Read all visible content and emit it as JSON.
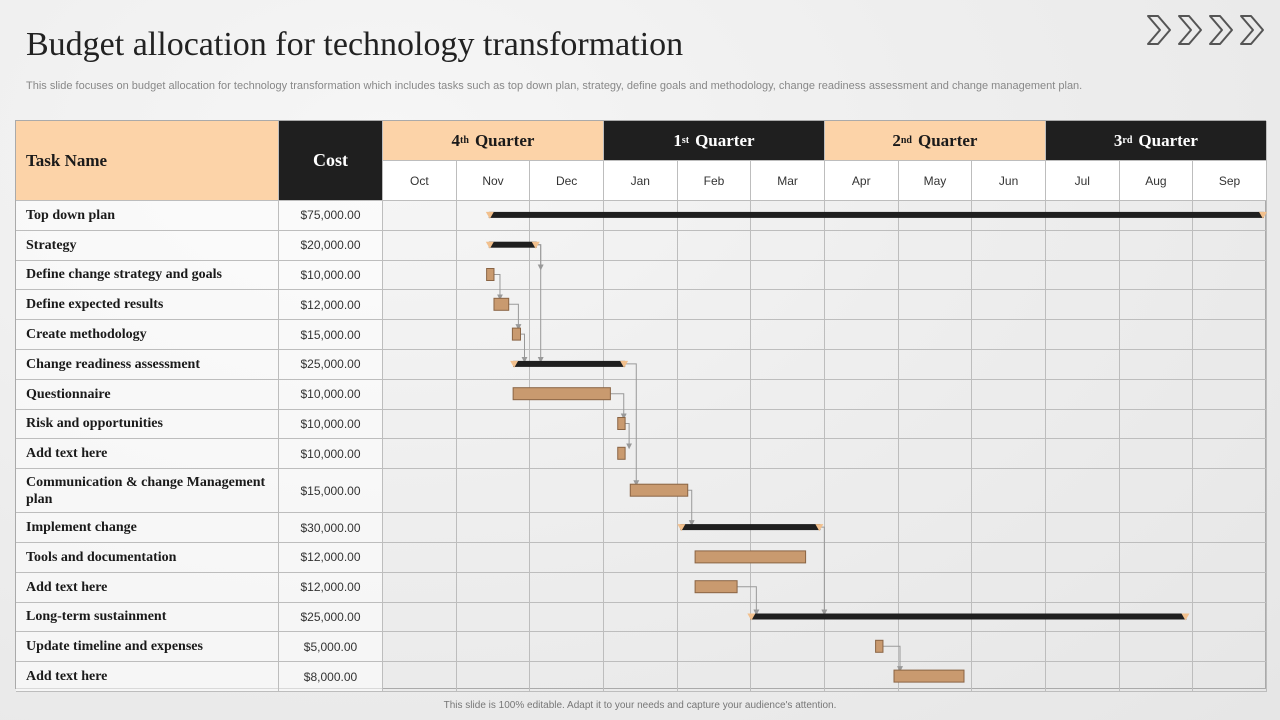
{
  "title": "Budget allocation for technology transformation",
  "subtitle": "This slide focuses on budget allocation for technology transformation which includes tasks such as top down plan, strategy, define goals and methodology, change readiness assessment and change management plan.",
  "footer": "This slide is 100% editable. Adapt it to your needs and capture your audience's attention.",
  "table": {
    "task_header": "Task Name",
    "cost_header": "Cost",
    "quarters": [
      {
        "num": "4",
        "sup": "th",
        "word": "Quarter",
        "style": "light"
      },
      {
        "num": "1",
        "sup": "st",
        "word": "Quarter",
        "style": "dark"
      },
      {
        "num": "2",
        "sup": "nd",
        "word": "Quarter",
        "style": "light"
      },
      {
        "num": "3",
        "sup": "rd",
        "word": "Quarter",
        "style": "dark"
      }
    ],
    "months": [
      "Oct",
      "Nov",
      "Dec",
      "Jan",
      "Feb",
      "Mar",
      "Apr",
      "May",
      "Jun",
      "Jul",
      "Aug",
      "Sep"
    ],
    "rows": [
      {
        "task": "Top down plan",
        "cost": "$75,000.00"
      },
      {
        "task": "Strategy",
        "cost": "$20,000.00"
      },
      {
        "task": "Define change strategy and goals",
        "cost": "$10,000.00"
      },
      {
        "task": "Define expected results",
        "cost": "$12,000.00"
      },
      {
        "task": "Create methodology",
        "cost": "$15,000.00"
      },
      {
        "task": "Change readiness assessment",
        "cost": "$25,000.00"
      },
      {
        "task": "Questionnaire",
        "cost": "$10,000.00"
      },
      {
        "task": "Risk and opportunities",
        "cost": "$10,000.00"
      },
      {
        "task": "Add text here",
        "cost": "$10,000.00"
      },
      {
        "task": "Communication & change Management plan",
        "cost": "$15,000.00"
      },
      {
        "task": "Implement change",
        "cost": "$30,000.00"
      },
      {
        "task": "Tools and documentation",
        "cost": "$12,000.00"
      },
      {
        "task": "Add text here",
        "cost": "$12,000.00"
      },
      {
        "task": "Long-term sustainment",
        "cost": "$25,000.00"
      },
      {
        "task": "Update timeline and expenses",
        "cost": "$5,000.00"
      },
      {
        "task": "Add text here",
        "cost": "$8,000.00"
      }
    ]
  },
  "gantt": {
    "colors": {
      "summary": "#1f1f1f",
      "task": "#c99a6f",
      "task_border": "#8a6444",
      "tip": "#f2c08d",
      "connector": "#999999"
    },
    "bars": [
      {
        "row": 0,
        "kind": "summary",
        "start": 1.45,
        "end": 12.0
      },
      {
        "row": 1,
        "kind": "summary",
        "start": 1.45,
        "end": 2.1
      },
      {
        "row": 2,
        "kind": "task",
        "start": 1.42,
        "end": 1.52
      },
      {
        "row": 3,
        "kind": "task",
        "start": 1.52,
        "end": 1.72
      },
      {
        "row": 4,
        "kind": "task",
        "start": 1.77,
        "end": 1.88
      },
      {
        "row": 5,
        "kind": "summary",
        "start": 1.78,
        "end": 3.3
      },
      {
        "row": 6,
        "kind": "task",
        "start": 1.78,
        "end": 3.1
      },
      {
        "row": 7,
        "kind": "task",
        "start": 3.2,
        "end": 3.3
      },
      {
        "row": 8,
        "kind": "task",
        "start": 3.2,
        "end": 3.3
      },
      {
        "row": 9,
        "kind": "task",
        "start": 3.37,
        "end": 4.15
      },
      {
        "row": 10,
        "kind": "summary",
        "start": 4.05,
        "end": 5.95
      },
      {
        "row": 11,
        "kind": "task",
        "start": 4.25,
        "end": 5.75
      },
      {
        "row": 12,
        "kind": "task",
        "start": 4.25,
        "end": 4.82
      },
      {
        "row": 13,
        "kind": "summary",
        "start": 5.0,
        "end": 10.92
      },
      {
        "row": 14,
        "kind": "task",
        "start": 6.7,
        "end": 6.8
      },
      {
        "row": 15,
        "kind": "task",
        "start": 6.95,
        "end": 7.9
      }
    ],
    "links": [
      {
        "from": 1,
        "to": 2
      },
      {
        "from": 2,
        "to": 3
      },
      {
        "from": 3,
        "to": 4
      },
      {
        "from": 4,
        "to": 5
      },
      {
        "from": 1,
        "to": 5
      },
      {
        "from": 6,
        "to": 7
      },
      {
        "from": 7,
        "to": 8
      },
      {
        "from": 5,
        "to": 9
      },
      {
        "from": 9,
        "to": 10
      },
      {
        "from": 12,
        "to": 13
      },
      {
        "from": 10,
        "to": 13
      },
      {
        "from": 14,
        "to": 15
      }
    ]
  }
}
